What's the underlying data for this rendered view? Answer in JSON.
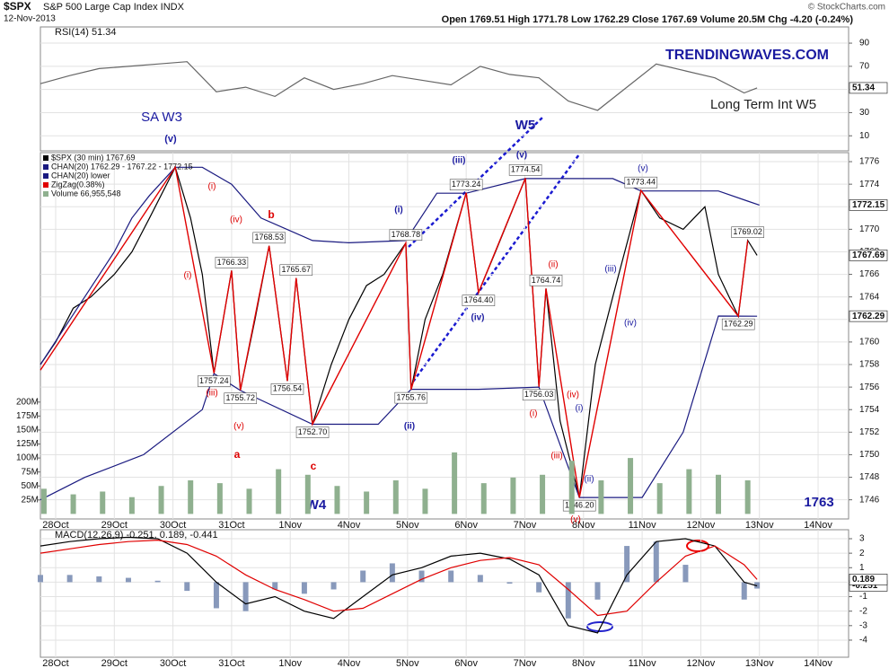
{
  "header": {
    "symbol": "$SPX",
    "name": "S&P 500 Large Cap Index INDX",
    "date": "12-Nov-2013",
    "quote": "Open 1769.51  High 1771.78  Low 1762.29  Close 1767.69  Volume 20.5M  Chg -4.20 (-0.24%)",
    "copyright": "© StockCharts.com"
  },
  "chart_data": [
    {
      "type": "line",
      "title": "RSI(14) 51.34",
      "xlim": [
        -0.26,
        13.52
      ],
      "ylim": [
        -3,
        104
      ],
      "yticks": [
        10,
        30,
        50,
        70,
        90
      ],
      "grid": true,
      "axis_side": "right",
      "series": [
        {
          "name": "RSI(14)",
          "color": "#666666",
          "last_label": "51.34",
          "x": [
            -0.26,
            0.24,
            0.74,
            1.24,
            1.74,
            2.24,
            2.74,
            3.24,
            3.74,
            4.24,
            4.74,
            5.24,
            5.74,
            6.24,
            6.74,
            7.24,
            7.74,
            8.24,
            8.74,
            9.24,
            9.74,
            10.24,
            10.74,
            11.24,
            11.74,
            11.96
          ],
          "values": [
            55,
            62,
            68,
            70,
            72,
            74,
            48,
            52,
            44,
            60,
            50,
            55,
            62,
            58,
            54,
            70,
            63,
            60,
            40,
            32,
            52,
            72,
            66,
            60,
            47,
            51.34
          ]
        }
      ],
      "annotations": [
        {
          "text": "TRENDINGWAVES.COM",
          "color": "#1a1aa0"
        },
        {
          "text": "Long Term Int W5",
          "color": "#222222"
        },
        {
          "text": "SA W3",
          "color": "#1a1aa0"
        }
      ]
    },
    {
      "type": "line",
      "xlim": [
        -0.26,
        13.52
      ],
      "ylim": [
        1744.3,
        1776.8
      ],
      "yticks": [
        1746,
        1748,
        1750,
        1752,
        1754,
        1756,
        1758,
        1760,
        1762,
        1764,
        1766,
        1768,
        1770,
        1772,
        1774,
        1776
      ],
      "grid": true,
      "axis_side": "right",
      "xticks": [
        {
          "value": 0,
          "label": "28Oct"
        },
        {
          "value": 1,
          "label": "29Oct"
        },
        {
          "value": 2,
          "label": "30Oct"
        },
        {
          "value": 3,
          "label": "31Oct"
        },
        {
          "value": 4,
          "label": "1Nov"
        },
        {
          "value": 5,
          "label": "4Nov"
        },
        {
          "value": 6,
          "label": "5Nov"
        },
        {
          "value": 7,
          "label": "6Nov"
        },
        {
          "value": 8,
          "label": "7Nov"
        },
        {
          "value": 9,
          "label": "8Nov"
        },
        {
          "value": 10,
          "label": "11Nov"
        },
        {
          "value": 11,
          "label": "12Nov"
        },
        {
          "value": 12,
          "label": "13Nov"
        },
        {
          "value": 13,
          "label": "14Nov"
        }
      ],
      "series": [
        {
          "name": "$SPX (30 min) 1767.69",
          "color": "#000000",
          "last_label": "1767.69",
          "x": [
            -0.26,
            0,
            0.3,
            0.6,
            1,
            1.3,
            1.6,
            2.04,
            2.3,
            2.5,
            2.7,
            3.0,
            3.15,
            3.4,
            3.64,
            3.95,
            4.1,
            4.38,
            4.7,
            5.0,
            5.3,
            5.6,
            5.97,
            6.06,
            6.3,
            6.6,
            7.0,
            7.21,
            7.5,
            8.01,
            8.24,
            8.36,
            8.6,
            8.93,
            9.2,
            9.5,
            9.98,
            10.3,
            10.7,
            11.07,
            11.3,
            11.64,
            11.8,
            11.96
          ],
          "values": [
            1758,
            1760,
            1763,
            1764,
            1766,
            1768,
            1771,
            1775.5,
            1771,
            1766,
            1757.24,
            1766.33,
            1755.72,
            1762,
            1768.53,
            1756.54,
            1765.67,
            1752.7,
            1758,
            1762,
            1765,
            1766,
            1768.78,
            1755.76,
            1762,
            1766,
            1773.24,
            1764.4,
            1768,
            1774.54,
            1756.03,
            1764.74,
            1753,
            1746.2,
            1758,
            1764,
            1773.44,
            1771,
            1770,
            1772,
            1766,
            1762.29,
            1769.02,
            1767.69
          ]
        },
        {
          "name": "CHAN(20) 1762.29 - 1767.22 - 1772.15",
          "color": "#1a1a80",
          "last_label": "1772.15",
          "x": [
            -0.26,
            1.0,
            1.3,
            1.6,
            2.04,
            2.5,
            3.0,
            3.5,
            4.38,
            5.0,
            5.97,
            6.5,
            7.0,
            8.01,
            9.0,
            9.5,
            9.98,
            11.3,
            11.8,
            12.0
          ],
          "values": [
            1758,
            1768,
            1771,
            1773,
            1775.5,
            1775.5,
            1774,
            1771,
            1769,
            1768.8,
            1769,
            1773.2,
            1773.2,
            1774.5,
            1774.5,
            1774.5,
            1773.4,
            1773.4,
            1772.5,
            1772.15
          ]
        },
        {
          "name": "CHAN(20) lower",
          "color": "#1a1a80",
          "last_label": "1762.29",
          "x": [
            -0.26,
            0.5,
            1.5,
            2.5,
            2.7,
            3.15,
            4.38,
            5.5,
            6.06,
            7.21,
            8.24,
            8.93,
            9.5,
            10.0,
            10.7,
            11.3,
            11.96
          ],
          "values": [
            1746,
            1748,
            1750,
            1754,
            1757.2,
            1755.7,
            1752.7,
            1752.7,
            1755.8,
            1755.8,
            1756,
            1746.2,
            1746.2,
            1746.2,
            1752,
            1762.3,
            1762.29
          ]
        },
        {
          "name": "ZigZag(0.38%)",
          "color": "#e00000",
          "x": [
            -0.26,
            2.04,
            2.7,
            3.0,
            3.15,
            3.64,
            3.95,
            4.1,
            4.38,
            5.97,
            6.06,
            7.0,
            7.21,
            8.01,
            8.24,
            8.36,
            8.93,
            9.98,
            11.64,
            11.8
          ],
          "values": [
            1757.5,
            1775.5,
            1757.24,
            1766.33,
            1755.72,
            1768.53,
            1756.54,
            1765.67,
            1752.7,
            1768.78,
            1755.76,
            1773.24,
            1764.4,
            1774.54,
            1756.03,
            1764.74,
            1746.2,
            1773.44,
            1762.29,
            1769.02
          ],
          "value_labels": [
            null,
            null,
            "1757.24",
            "1766.33",
            "1755.72",
            "1768.53",
            "1756.54",
            "1765.67",
            "1752.70",
            "1768.78",
            "1755.76",
            "1773.24",
            "1764.40",
            "1774.54",
            "1756.03",
            "1764.74",
            "1746.20",
            "1773.44",
            "1762.29",
            "1769.02"
          ]
        }
      ],
      "annotations": [
        {
          "text": "(v)",
          "color": "#1a1aa0"
        },
        {
          "text": "W5",
          "color": "#1a1aa0"
        },
        {
          "text": "(iii)",
          "color": "#1a1aa0"
        },
        {
          "text": "(v)",
          "color": "#1a1aa0"
        },
        {
          "text": "(v)",
          "color": "#1a1aa0"
        },
        {
          "text": "(i)",
          "color": "#1a1aa0"
        },
        {
          "text": "b",
          "color": "#dd0000"
        },
        {
          "text": "(i)",
          "color": "#dd0000"
        },
        {
          "text": "(iv)",
          "color": "#dd0000"
        },
        {
          "text": "(i)",
          "color": "#dd0000"
        },
        {
          "text": "(iii)",
          "color": "#dd0000"
        },
        {
          "text": "(v)",
          "color": "#dd0000"
        },
        {
          "text": "a",
          "color": "#dd0000"
        },
        {
          "text": "c",
          "color": "#dd0000"
        },
        {
          "text": "W4",
          "color": "#1a1aa0"
        },
        {
          "text": "(ii)",
          "color": "#1a1aa0"
        },
        {
          "text": "(iv)",
          "color": "#1a1aa0"
        },
        {
          "text": "(ii)",
          "color": "#dd0000"
        },
        {
          "text": "(i)",
          "color": "#dd0000"
        },
        {
          "text": "(iii)",
          "color": "#dd0000"
        },
        {
          "text": "(iv)",
          "color": "#dd0000"
        },
        {
          "text": "(i)",
          "color": "#1a1aa0"
        },
        {
          "text": "(ii)",
          "color": "#1a1aa0"
        },
        {
          "text": "(iii)",
          "color": "#1a1aa0"
        },
        {
          "text": "(iv)",
          "color": "#1a1aa0"
        },
        {
          "text": "1763",
          "color": "#1a1aa0"
        },
        {
          "text": "(v)",
          "color": "#dd0000"
        }
      ]
    },
    {
      "type": "bar",
      "xlim": [
        -0.26,
        13.52
      ],
      "ylim": [
        -9,
        646
      ],
      "axis_side": "left",
      "yticks": [
        {
          "value": 25,
          "label": "25M"
        },
        {
          "value": 50,
          "label": "50M"
        },
        {
          "value": 75,
          "label": "75M"
        },
        {
          "value": 100,
          "label": "100M"
        },
        {
          "value": 125,
          "label": "125M"
        },
        {
          "value": 150,
          "label": "150M"
        },
        {
          "value": 175,
          "label": "175M"
        },
        {
          "value": 200,
          "label": "200M"
        }
      ],
      "series": [
        {
          "name": "Volume 66,955,548",
          "color": "#8fb08f",
          "x": [
            -0.2,
            0.3,
            0.8,
            1.3,
            1.8,
            2.3,
            2.8,
            3.3,
            3.8,
            4.3,
            4.8,
            5.3,
            5.8,
            6.3,
            6.8,
            7.3,
            7.8,
            8.3,
            8.8,
            9.3,
            9.8,
            10.3,
            10.8,
            11.3,
            11.8
          ],
          "values": [
            45,
            35,
            40,
            30,
            50,
            60,
            55,
            45,
            80,
            70,
            50,
            40,
            60,
            45,
            110,
            55,
            65,
            70,
            95,
            60,
            100,
            55,
            80,
            70,
            60
          ]
        }
      ]
    },
    {
      "type": "line",
      "title": "MACD(12,26,9) -0.251, 0.189, -0.441",
      "xlim": [
        -0.26,
        13.52
      ],
      "ylim": [
        -5.18,
        3.62
      ],
      "yticks": [
        -4,
        -3,
        -2,
        -1,
        0,
        1,
        2,
        3
      ],
      "grid": true,
      "axis_side": "right",
      "xticks": [
        {
          "value": 0,
          "label": "28Oct"
        },
        {
          "value": 1,
          "label": "29Oct"
        },
        {
          "value": 2,
          "label": "30Oct"
        },
        {
          "value": 3,
          "label": "31Oct"
        },
        {
          "value": 4,
          "label": "1Nov"
        },
        {
          "value": 5,
          "label": "4Nov"
        },
        {
          "value": 6,
          "label": "5Nov"
        },
        {
          "value": 7,
          "label": "6Nov"
        },
        {
          "value": 8,
          "label": "7Nov"
        },
        {
          "value": 9,
          "label": "8Nov"
        },
        {
          "value": 10,
          "label": "11Nov"
        },
        {
          "value": 11,
          "label": "12Nov"
        },
        {
          "value": 12,
          "label": "13Nov"
        },
        {
          "value": 13,
          "label": "14Nov"
        }
      ],
      "series": [
        {
          "name": "Histogram",
          "type": "bar",
          "color": "#8899bb",
          "x": [
            -0.26,
            0.24,
            0.74,
            1.24,
            1.74,
            2.24,
            2.74,
            3.24,
            3.74,
            4.24,
            4.74,
            5.24,
            5.74,
            6.24,
            6.74,
            7.24,
            7.74,
            8.24,
            8.74,
            9.24,
            9.74,
            10.24,
            10.74,
            11.24,
            11.74,
            11.96
          ],
          "values": [
            0.5,
            0.5,
            0.4,
            0.3,
            0.1,
            -0.6,
            -1.8,
            -2.0,
            -0.5,
            -0.8,
            -0.5,
            0.8,
            1.3,
            0.8,
            0.8,
            0.5,
            -0.1,
            -0.7,
            -2.5,
            -1.2,
            2.5,
            2.8,
            1.2,
            0.0,
            -1.2,
            -0.441
          ]
        },
        {
          "name": "MACD",
          "color": "#000000",
          "last_label": "-0.251",
          "x": [
            -0.26,
            0.24,
            0.74,
            1.24,
            1.74,
            2.24,
            2.74,
            3.24,
            3.74,
            4.24,
            4.74,
            5.24,
            5.74,
            6.24,
            6.74,
            7.24,
            7.74,
            8.24,
            8.74,
            9.24,
            9.74,
            10.24,
            10.74,
            11.24,
            11.74,
            11.96
          ],
          "values": [
            2.5,
            2.8,
            3.0,
            3.1,
            3.0,
            2.0,
            0.0,
            -1.5,
            -1.0,
            -2.0,
            -2.5,
            -1.0,
            0.5,
            1.0,
            1.8,
            2.0,
            1.6,
            0.5,
            -3.0,
            -3.5,
            0.5,
            2.8,
            3.0,
            2.5,
            0.0,
            -0.251
          ]
        },
        {
          "name": "Signal",
          "color": "#e00000",
          "last_label": "0.189",
          "x": [
            -0.26,
            0.24,
            0.74,
            1.24,
            1.74,
            2.24,
            2.74,
            3.24,
            3.74,
            4.24,
            4.74,
            5.24,
            5.74,
            6.24,
            6.74,
            7.24,
            7.74,
            8.24,
            8.74,
            9.24,
            9.74,
            10.24,
            10.74,
            11.24,
            11.74,
            11.96
          ],
          "values": [
            2.0,
            2.3,
            2.6,
            2.8,
            2.9,
            2.6,
            1.8,
            0.5,
            -0.5,
            -1.2,
            -2.0,
            -1.8,
            -0.8,
            0.2,
            1.0,
            1.5,
            1.7,
            1.2,
            -0.5,
            -2.3,
            -2.0,
            0.0,
            1.8,
            2.5,
            1.2,
            0.189
          ]
        }
      ]
    }
  ]
}
